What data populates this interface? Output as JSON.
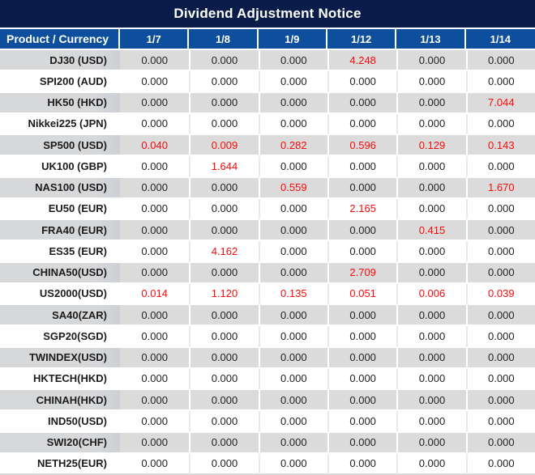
{
  "title": "Dividend Adjustment Notice",
  "colors": {
    "title_bar_bg": "#0a1d4a",
    "header_bg": "#0e4f9d",
    "header_text": "#ffffff",
    "row_gray_bg": "#dbdbdb",
    "row_white_bg": "#ffffff",
    "value_text": "#222222",
    "product_text": "#1c1c1c",
    "red_value": "#fa0a0a",
    "separator_white": "#ffffff",
    "separator_faint": "#e9e9e9"
  },
  "chart_data": {
    "type": "table",
    "title": "Dividend Adjustment Notice",
    "columns": [
      "Product / Currency",
      "1/7",
      "1/8",
      "1/9",
      "1/12",
      "1/13",
      "1/14"
    ],
    "red_meaning": "non-zero dividend adjustment highlighted in red",
    "rows": [
      {
        "product": "DJ30 (USD)",
        "values": [
          "0.000",
          "0.000",
          "0.000",
          "4.248",
          "0.000",
          "0.000"
        ],
        "red_indices": [
          3
        ]
      },
      {
        "product": "SPI200 (AUD)",
        "values": [
          "0.000",
          "0.000",
          "0.000",
          "0.000",
          "0.000",
          "0.000"
        ],
        "red_indices": []
      },
      {
        "product": "HK50 (HKD)",
        "values": [
          "0.000",
          "0.000",
          "0.000",
          "0.000",
          "0.000",
          "7.044"
        ],
        "red_indices": [
          5
        ]
      },
      {
        "product": "Nikkei225 (JPN)",
        "values": [
          "0.000",
          "0.000",
          "0.000",
          "0.000",
          "0.000",
          "0.000"
        ],
        "red_indices": []
      },
      {
        "product": "SP500 (USD)",
        "values": [
          "0.040",
          "0.009",
          "0.282",
          "0.596",
          "0.129",
          "0.143"
        ],
        "red_indices": [
          0,
          1,
          2,
          3,
          4,
          5
        ]
      },
      {
        "product": "UK100 (GBP)",
        "values": [
          "0.000",
          "1.644",
          "0.000",
          "0.000",
          "0.000",
          "0.000"
        ],
        "red_indices": [
          1
        ]
      },
      {
        "product": "NAS100 (USD)",
        "values": [
          "0.000",
          "0.000",
          "0.559",
          "0.000",
          "0.000",
          "1.670"
        ],
        "red_indices": [
          2,
          5
        ]
      },
      {
        "product": "EU50 (EUR)",
        "values": [
          "0.000",
          "0.000",
          "0.000",
          "2.165",
          "0.000",
          "0.000"
        ],
        "red_indices": [
          3
        ]
      },
      {
        "product": "FRA40 (EUR)",
        "values": [
          "0.000",
          "0.000",
          "0.000",
          "0.000",
          "0.415",
          "0.000"
        ],
        "red_indices": [
          4
        ]
      },
      {
        "product": "ES35 (EUR)",
        "values": [
          "0.000",
          "4.162",
          "0.000",
          "0.000",
          "0.000",
          "0.000"
        ],
        "red_indices": [
          1
        ]
      },
      {
        "product": "CHINA50(USD)",
        "values": [
          "0.000",
          "0.000",
          "0.000",
          "2.709",
          "0.000",
          "0.000"
        ],
        "red_indices": [
          3
        ]
      },
      {
        "product": "US2000(USD)",
        "values": [
          "0.014",
          "1.120",
          "0.135",
          "0.051",
          "0.006",
          "0.039"
        ],
        "red_indices": [
          0,
          1,
          2,
          3,
          4,
          5
        ]
      },
      {
        "product": "SA40(ZAR)",
        "values": [
          "0.000",
          "0.000",
          "0.000",
          "0.000",
          "0.000",
          "0.000"
        ],
        "red_indices": []
      },
      {
        "product": "SGP20(SGD)",
        "values": [
          "0.000",
          "0.000",
          "0.000",
          "0.000",
          "0.000",
          "0.000"
        ],
        "red_indices": []
      },
      {
        "product": "TWINDEX(USD)",
        "values": [
          "0.000",
          "0.000",
          "0.000",
          "0.000",
          "0.000",
          "0.000"
        ],
        "red_indices": []
      },
      {
        "product": "HKTECH(HKD)",
        "values": [
          "0.000",
          "0.000",
          "0.000",
          "0.000",
          "0.000",
          "0.000"
        ],
        "red_indices": []
      },
      {
        "product": "CHINAH(HKD)",
        "values": [
          "0.000",
          "0.000",
          "0.000",
          "0.000",
          "0.000",
          "0.000"
        ],
        "red_indices": []
      },
      {
        "product": "IND50(USD)",
        "values": [
          "0.000",
          "0.000",
          "0.000",
          "0.000",
          "0.000",
          "0.000"
        ],
        "red_indices": []
      },
      {
        "product": "SWI20(CHF)",
        "values": [
          "0.000",
          "0.000",
          "0.000",
          "0.000",
          "0.000",
          "0.000"
        ],
        "red_indices": []
      },
      {
        "product": "NETH25(EUR)",
        "values": [
          "0.000",
          "0.000",
          "0.000",
          "0.000",
          "0.000",
          "0.000"
        ],
        "red_indices": []
      }
    ]
  }
}
